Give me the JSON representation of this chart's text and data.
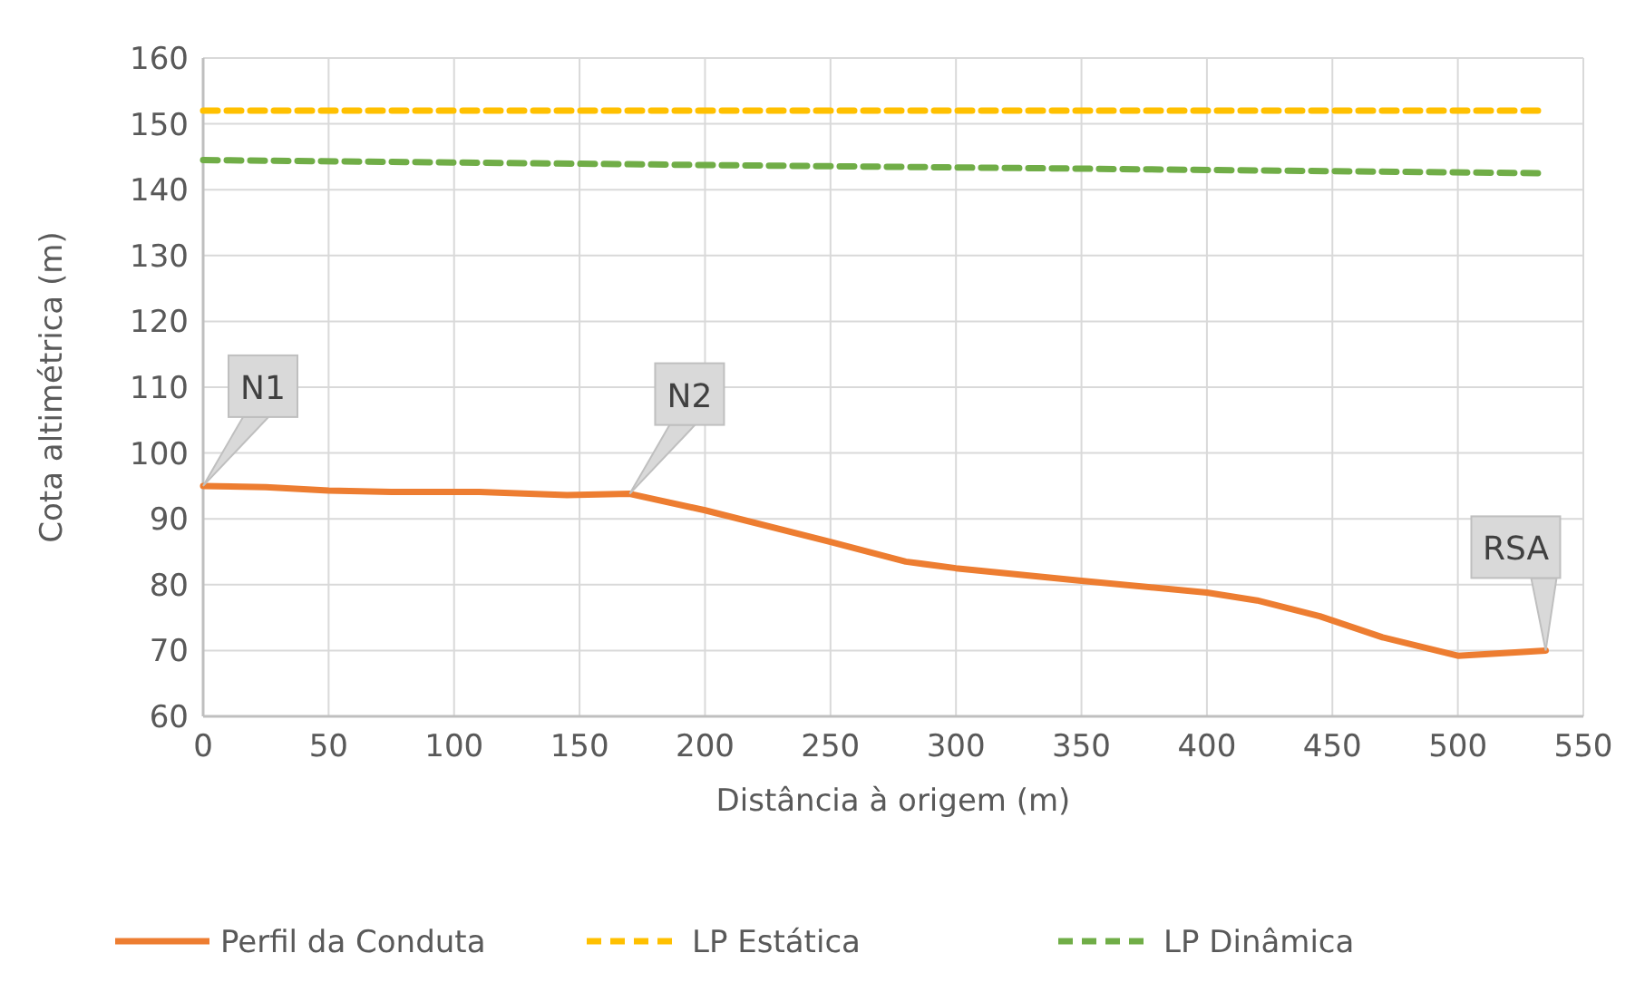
{
  "chart_data": {
    "type": "line",
    "xlabel": "Distância à origem (m)",
    "ylabel": "Cota altimétrica (m)",
    "xlim": [
      0,
      550
    ],
    "xticks": [
      0,
      50,
      100,
      150,
      200,
      250,
      300,
      350,
      400,
      450,
      500,
      550
    ],
    "ylim": [
      60,
      160
    ],
    "yticks": [
      60,
      70,
      80,
      90,
      100,
      110,
      120,
      130,
      140,
      150,
      160
    ],
    "grid": true,
    "legend": "bottom",
    "marker": "none",
    "series": [
      {
        "name": "Perfil da Conduta",
        "color": "#ed7d31",
        "line_style": "solid",
        "x": [
          0,
          25,
          50,
          75,
          110,
          145,
          170,
          200,
          250,
          280,
          300,
          350,
          400,
          420,
          445,
          470,
          500,
          535
        ],
        "values": [
          95,
          94.8,
          94.3,
          94.1,
          94.1,
          93.6,
          93.8,
          91.3,
          86.5,
          83.5,
          82.5,
          80.6,
          78.8,
          77.6,
          75.2,
          72,
          69.2,
          70
        ]
      },
      {
        "name": "LP Estática",
        "color": "#ffc000",
        "line_style": "dashed",
        "x": [
          0,
          535
        ],
        "values": [
          152,
          152
        ]
      },
      {
        "name": "LP Dinâmica",
        "color": "#70ad47",
        "line_style": "dashed",
        "x": [
          0,
          535
        ],
        "values": [
          144.5,
          142.5
        ]
      }
    ],
    "annotations": [
      {
        "text": "N1",
        "x": 0,
        "y": 95
      },
      {
        "text": "N2",
        "x": 170,
        "y": 93.8
      },
      {
        "text": "RSA",
        "x": 535,
        "y": 70
      }
    ]
  }
}
